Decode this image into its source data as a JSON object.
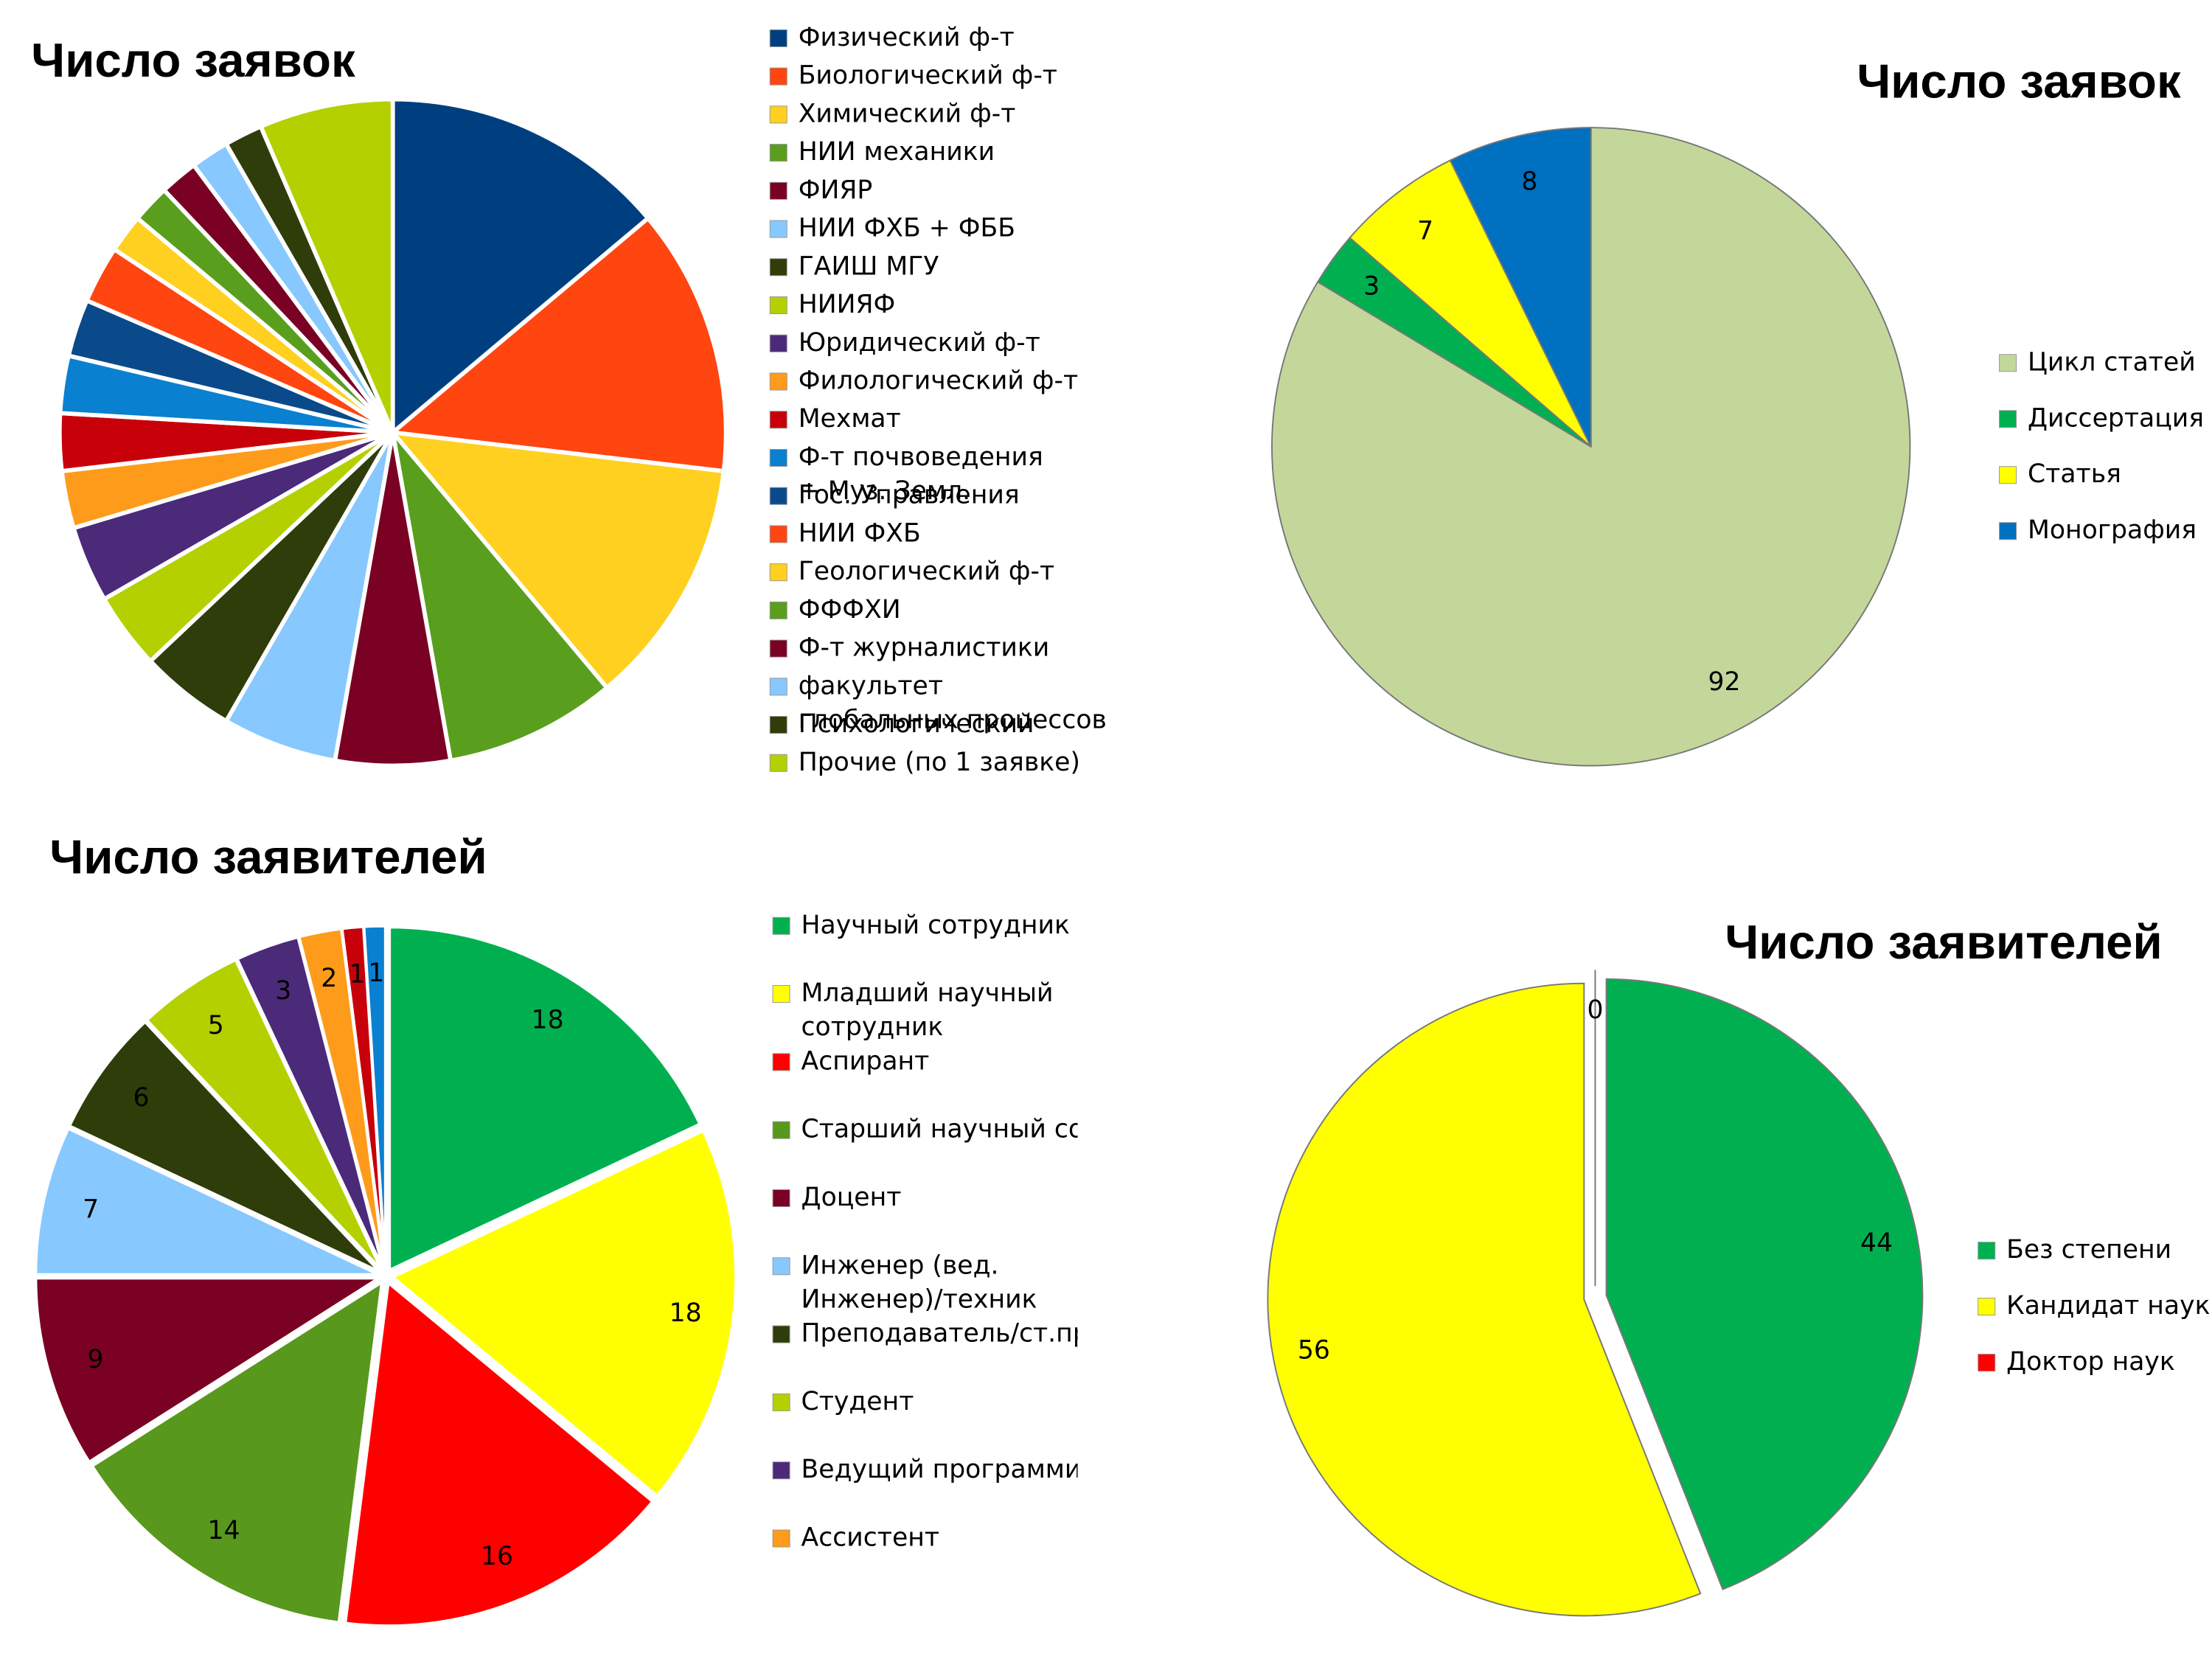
{
  "chart_data": [
    {
      "type": "pie",
      "title": "Число заявок",
      "legend": "right",
      "data_labels": false,
      "explode": 0,
      "categories": [
        "Физический ф-т",
        "Биологический ф-т",
        "Химический ф-т",
        "НИИ механики",
        "ФИЯР",
        "НИИ ФХБ + ФББ",
        "ГАИШ МГУ",
        "НИИЯФ",
        "Юридический ф-т",
        "Филологический ф-т",
        "Мехмат",
        "Ф-т почвоведения + Муз. Земл.",
        "Гос. Управления",
        "НИИ ФХБ",
        "Геологический ф-т",
        "ФФФХИ",
        "Ф-т журналистики",
        "факультет глобальных процессов",
        "Психологический",
        "Прочие (по 1 заявке)"
      ],
      "values": [
        15,
        14,
        13,
        9,
        6,
        6,
        5,
        4,
        4,
        3,
        3,
        3,
        3,
        3,
        2,
        2,
        2,
        2,
        2,
        7
      ],
      "colors": [
        "#003f7f",
        "#ff4510",
        "#ffd020",
        "#5a9e1e",
        "#7a0024",
        "#87c8ff",
        "#2e3d0a",
        "#b4d000",
        "#4b2a7a",
        "#ff9b1a",
        "#c8000a",
        "#0a80d0",
        "#0a4a8a",
        "#ff4510",
        "#ffd020",
        "#5a9e1e",
        "#7a0024",
        "#87c8ff",
        "#2e3d0a",
        "#b4d000"
      ]
    },
    {
      "type": "pie",
      "title": "Число заявок",
      "legend": "right",
      "data_labels": true,
      "explode": 0,
      "categories": [
        "Цикл статей",
        "Диссертация",
        "Статья",
        "Монография"
      ],
      "values": [
        92,
        3,
        7,
        8
      ],
      "colors": [
        "#c4d79b",
        "#00b050",
        "#ffff00",
        "#0070c0"
      ]
    },
    {
      "type": "pie",
      "title": "Число заявителей",
      "legend": "right",
      "data_labels": true,
      "explode": 5,
      "categories": [
        "Научный сотрудник",
        "Младший научный сотрудник",
        "Аспирант",
        "Старший научный сот",
        "Доцент",
        "Инженер (вед. Инженер)/техник",
        "Преподаватель/ст.пр",
        "Студент",
        "Ведущий программис",
        "Ассистент",
        null,
        null
      ],
      "values": [
        18,
        18,
        16,
        14,
        9,
        7,
        6,
        5,
        3,
        2,
        1,
        1
      ],
      "colors": [
        "#00b050",
        "#ffff00",
        "#ff0000",
        "#58981c",
        "#7a0024",
        "#87c8ff",
        "#2e3d0a",
        "#b4d000",
        "#4b2a7a",
        "#ff9b1a",
        "#c8000a",
        "#0a80d0"
      ]
    },
    {
      "type": "pie",
      "title": "Число заявителей",
      "legend": "right",
      "data_labels": true,
      "explode": 8,
      "categories": [
        "Без степени",
        "Кандидат наук",
        "Доктор наук"
      ],
      "values": [
        44,
        56,
        0
      ],
      "colors": [
        "#00b050",
        "#ffff00",
        "#ff0000"
      ]
    }
  ]
}
